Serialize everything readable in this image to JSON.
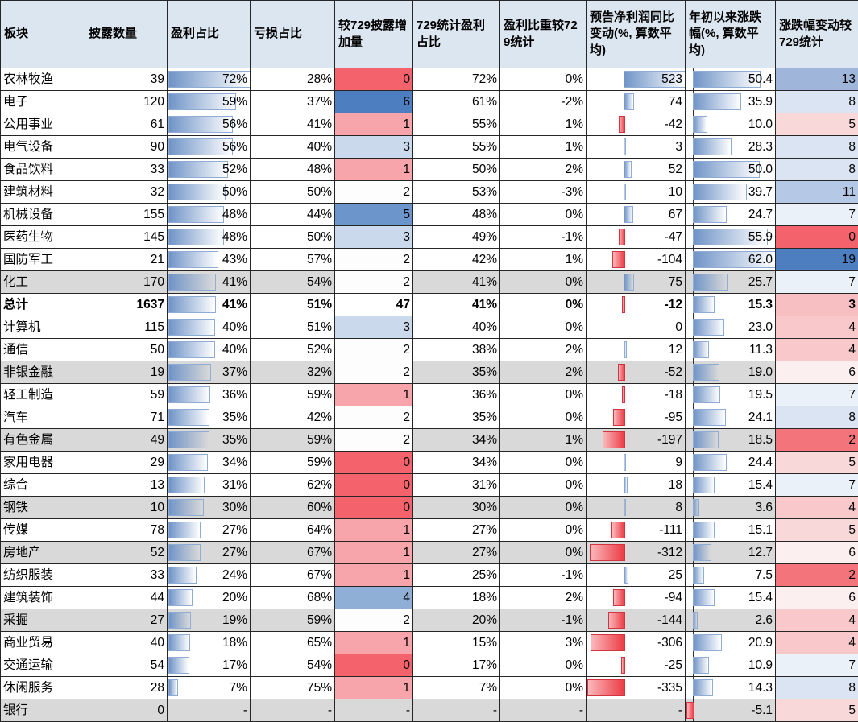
{
  "table": {
    "header": [
      "板块",
      "披露数量",
      "盈利占比",
      "亏损占比",
      "较729披露增加量",
      "729统计盈利占比",
      "盈利比重较729统计",
      "预告净利润同比变动(%, 算数平均)",
      "年初以来涨跌幅(%, 算数平均)",
      "涨跌幅变动较729统计"
    ],
    "rows": [
      {
        "name": "农林牧渔",
        "count": "39",
        "profit": "72%",
        "loss": "28%",
        "delta": "0",
        "stat729": "72%",
        "weight": "0%",
        "forecast": "523",
        "ytd": "50.4",
        "chg": "13",
        "gray": false,
        "bold": false
      },
      {
        "name": "电子",
        "count": "120",
        "profit": "59%",
        "loss": "37%",
        "delta": "6",
        "stat729": "61%",
        "weight": "-2%",
        "forecast": "74",
        "ytd": "35.9",
        "chg": "8",
        "gray": false,
        "bold": false
      },
      {
        "name": "公用事业",
        "count": "61",
        "profit": "56%",
        "loss": "41%",
        "delta": "1",
        "stat729": "55%",
        "weight": "1%",
        "forecast": "-42",
        "ytd": "10.0",
        "chg": "5",
        "gray": false,
        "bold": false
      },
      {
        "name": "电气设备",
        "count": "90",
        "profit": "56%",
        "loss": "40%",
        "delta": "3",
        "stat729": "55%",
        "weight": "1%",
        "forecast": "3",
        "ytd": "28.3",
        "chg": "8",
        "gray": false,
        "bold": false
      },
      {
        "name": "食品饮料",
        "count": "33",
        "profit": "52%",
        "loss": "48%",
        "delta": "1",
        "stat729": "50%",
        "weight": "2%",
        "forecast": "52",
        "ytd": "50.0",
        "chg": "8",
        "gray": false,
        "bold": false
      },
      {
        "name": "建筑材料",
        "count": "32",
        "profit": "50%",
        "loss": "50%",
        "delta": "2",
        "stat729": "53%",
        "weight": "-3%",
        "forecast": "10",
        "ytd": "39.7",
        "chg": "11",
        "gray": false,
        "bold": false
      },
      {
        "name": "机械设备",
        "count": "155",
        "profit": "48%",
        "loss": "44%",
        "delta": "5",
        "stat729": "48%",
        "weight": "0%",
        "forecast": "67",
        "ytd": "24.7",
        "chg": "7",
        "gray": false,
        "bold": false
      },
      {
        "name": "医药生物",
        "count": "145",
        "profit": "48%",
        "loss": "50%",
        "delta": "3",
        "stat729": "49%",
        "weight": "-1%",
        "forecast": "-47",
        "ytd": "55.9",
        "chg": "0",
        "gray": false,
        "bold": false
      },
      {
        "name": "国防军工",
        "count": "21",
        "profit": "43%",
        "loss": "57%",
        "delta": "2",
        "stat729": "42%",
        "weight": "1%",
        "forecast": "-104",
        "ytd": "62.0",
        "chg": "19",
        "gray": false,
        "bold": false
      },
      {
        "name": "化工",
        "count": "170",
        "profit": "41%",
        "loss": "54%",
        "delta": "2",
        "stat729": "41%",
        "weight": "0%",
        "forecast": "75",
        "ytd": "25.7",
        "chg": "7",
        "gray": true,
        "bold": false
      },
      {
        "name": "总计",
        "count": "1637",
        "profit": "41%",
        "loss": "51%",
        "delta": "47",
        "stat729": "41%",
        "weight": "0%",
        "forecast": "-12",
        "ytd": "15.3",
        "chg": "3",
        "gray": false,
        "bold": true
      },
      {
        "name": "计算机",
        "count": "115",
        "profit": "40%",
        "loss": "51%",
        "delta": "3",
        "stat729": "40%",
        "weight": "0%",
        "forecast": "0",
        "ytd": "23.0",
        "chg": "4",
        "gray": false,
        "bold": false
      },
      {
        "name": "通信",
        "count": "50",
        "profit": "40%",
        "loss": "52%",
        "delta": "2",
        "stat729": "38%",
        "weight": "2%",
        "forecast": "12",
        "ytd": "11.3",
        "chg": "4",
        "gray": false,
        "bold": false
      },
      {
        "name": "非银金融",
        "count": "19",
        "profit": "37%",
        "loss": "32%",
        "delta": "2",
        "stat729": "35%",
        "weight": "2%",
        "forecast": "-52",
        "ytd": "19.0",
        "chg": "6",
        "gray": true,
        "bold": false
      },
      {
        "name": "轻工制造",
        "count": "59",
        "profit": "36%",
        "loss": "59%",
        "delta": "1",
        "stat729": "36%",
        "weight": "0%",
        "forecast": "-18",
        "ytd": "19.5",
        "chg": "7",
        "gray": false,
        "bold": false
      },
      {
        "name": "汽车",
        "count": "71",
        "profit": "35%",
        "loss": "42%",
        "delta": "2",
        "stat729": "35%",
        "weight": "0%",
        "forecast": "-95",
        "ytd": "24.1",
        "chg": "8",
        "gray": false,
        "bold": false
      },
      {
        "name": "有色金属",
        "count": "49",
        "profit": "35%",
        "loss": "59%",
        "delta": "2",
        "stat729": "34%",
        "weight": "1%",
        "forecast": "-197",
        "ytd": "18.5",
        "chg": "2",
        "gray": true,
        "bold": false
      },
      {
        "name": "家用电器",
        "count": "29",
        "profit": "34%",
        "loss": "59%",
        "delta": "0",
        "stat729": "34%",
        "weight": "0%",
        "forecast": "9",
        "ytd": "24.4",
        "chg": "5",
        "gray": false,
        "bold": false
      },
      {
        "name": "综合",
        "count": "13",
        "profit": "31%",
        "loss": "62%",
        "delta": "0",
        "stat729": "31%",
        "weight": "0%",
        "forecast": "18",
        "ytd": "15.4",
        "chg": "7",
        "gray": false,
        "bold": false
      },
      {
        "name": "钢铁",
        "count": "10",
        "profit": "30%",
        "loss": "60%",
        "delta": "0",
        "stat729": "30%",
        "weight": "0%",
        "forecast": "8",
        "ytd": "3.6",
        "chg": "4",
        "gray": true,
        "bold": false
      },
      {
        "name": "传媒",
        "count": "78",
        "profit": "27%",
        "loss": "64%",
        "delta": "1",
        "stat729": "27%",
        "weight": "0%",
        "forecast": "-111",
        "ytd": "15.1",
        "chg": "5",
        "gray": false,
        "bold": false
      },
      {
        "name": "房地产",
        "count": "52",
        "profit": "27%",
        "loss": "67%",
        "delta": "1",
        "stat729": "27%",
        "weight": "0%",
        "forecast": "-312",
        "ytd": "12.7",
        "chg": "6",
        "gray": true,
        "bold": false
      },
      {
        "name": "纺织服装",
        "count": "33",
        "profit": "24%",
        "loss": "67%",
        "delta": "1",
        "stat729": "25%",
        "weight": "-1%",
        "forecast": "25",
        "ytd": "7.5",
        "chg": "2",
        "gray": false,
        "bold": false
      },
      {
        "name": "建筑装饰",
        "count": "44",
        "profit": "20%",
        "loss": "68%",
        "delta": "4",
        "stat729": "18%",
        "weight": "2%",
        "forecast": "-94",
        "ytd": "15.4",
        "chg": "6",
        "gray": false,
        "bold": false
      },
      {
        "name": "采掘",
        "count": "27",
        "profit": "19%",
        "loss": "59%",
        "delta": "2",
        "stat729": "20%",
        "weight": "-1%",
        "forecast": "-144",
        "ytd": "2.6",
        "chg": "4",
        "gray": true,
        "bold": false
      },
      {
        "name": "商业贸易",
        "count": "40",
        "profit": "18%",
        "loss": "65%",
        "delta": "1",
        "stat729": "15%",
        "weight": "3%",
        "forecast": "-306",
        "ytd": "20.9",
        "chg": "4",
        "gray": false,
        "bold": false
      },
      {
        "name": "交通运输",
        "count": "54",
        "profit": "17%",
        "loss": "54%",
        "delta": "0",
        "stat729": "17%",
        "weight": "0%",
        "forecast": "-25",
        "ytd": "10.9",
        "chg": "7",
        "gray": false,
        "bold": false
      },
      {
        "name": "休闲服务",
        "count": "28",
        "profit": "7%",
        "loss": "75%",
        "delta": "1",
        "stat729": "7%",
        "weight": "0%",
        "forecast": "-335",
        "ytd": "14.3",
        "chg": "8",
        "gray": false,
        "bold": false
      },
      {
        "name": "银行",
        "count": "0",
        "profit": "-",
        "loss": "-",
        "delta": "-",
        "stat729": "-",
        "weight": "-",
        "forecast": "-",
        "ytd": "-5.1",
        "chg": "5",
        "gray": true,
        "bold": false
      }
    ]
  },
  "scales": {
    "delta": {
      "0": "#F4636C",
      "1": "#F7A5AA",
      "2": "#FEFDFE",
      "3": "#CBD9EC",
      "4": "#8FAFD7",
      "5": "#6C96CB",
      "6": "#4C7EC0"
    },
    "chg": {
      "0": "#F4636C",
      "2": "#F4747C",
      "3": "#F8BFC2",
      "4": "#F8C8CB",
      "5": "#F9D8DA",
      "6": "#FCEFF0",
      "7": "#EBF1F9",
      "8": "#DBE4F2",
      "11": "#B5C9E6",
      "13": "#9FB6DA",
      "19": "#4C7EC0"
    }
  },
  "colors": {
    "header_bg": "#DCE6F1",
    "gray_row_bg": "#D9D9D9",
    "grid": "#262626",
    "bar_blue": "#7094C7",
    "bar_blue_border": "#8FACD4",
    "bar_red": "#EC3B44",
    "bar_red_border": "#D03540",
    "scale_red": "#F8696B",
    "scale_mid": "#FCFCFF",
    "scale_blue": "#5A8AC6"
  }
}
